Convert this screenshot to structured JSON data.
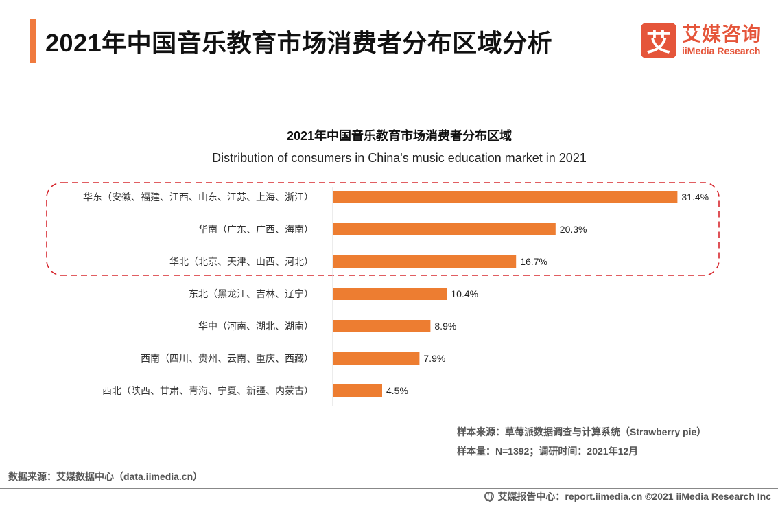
{
  "header": {
    "title": "2021年中国音乐教育市场消费者分布区域分析",
    "logo_mark": "艾",
    "logo_cn": "艾媒咨询",
    "logo_en": "iiMedia Research"
  },
  "chart_data": {
    "type": "bar",
    "orientation": "horizontal",
    "title": "2021年中国音乐教育市场消费者分布区域",
    "subtitle": "Distribution of consumers in China's music education market in 2021",
    "categories": [
      "华东（安徽、福建、江西、山东、江苏、上海、浙江）",
      "华南（广东、广西、海南）",
      "华北（北京、天津、山西、河北）",
      "东北（黑龙江、吉林、辽宁）",
      "华中（河南、湖北、湖南）",
      "西南（四川、贵州、云南、重庆、西藏）",
      "西北（陕西、甘肃、青海、宁夏、新疆、内蒙古）"
    ],
    "values": [
      31.4,
      20.3,
      16.7,
      10.4,
      8.9,
      7.9,
      4.5
    ],
    "value_labels": [
      "31.4%",
      "20.3%",
      "16.7%",
      "10.4%",
      "8.9%",
      "7.9%",
      "4.5%"
    ],
    "unit": "%",
    "xlim": [
      0,
      35
    ],
    "grid": false,
    "bar_color": "#ed7d31",
    "highlight_color": "#d7282f",
    "highlight_categories": [
      0,
      1,
      2
    ]
  },
  "notes": {
    "sample_source": "样本来源：草莓派数据调查与计算系统（Strawberry pie）",
    "sample_size": "样本量：N=1392；调研时间：2021年12月"
  },
  "data_source": "数据来源：艾媒数据中心（data.iimedia.cn）",
  "footer": {
    "text": "艾媒报告中心：report.iimedia.cn ©2021 iiMedia Research Inc"
  }
}
